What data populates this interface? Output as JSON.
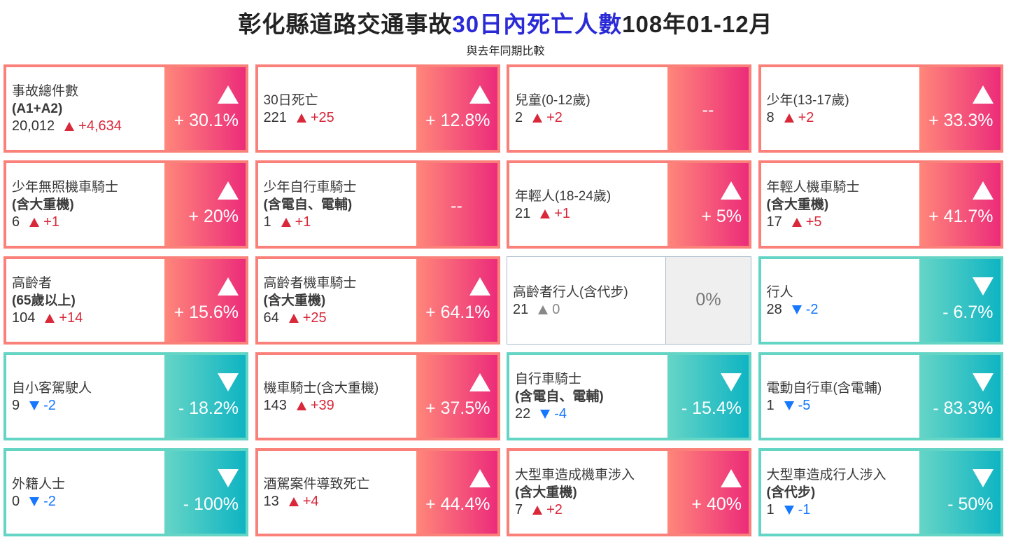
{
  "header": {
    "title_part1": "彰化縣道路交通事故",
    "title_highlight": "30日內死亡人數",
    "title_part2": "108年01-12月",
    "subtitle": "與去年同期比較"
  },
  "colors": {
    "up": "#d8283a",
    "down": "#1677ff",
    "up_gradient": [
      "#ff877a",
      "#ec2c7a"
    ],
    "down_gradient": [
      "#66d5c6",
      "#0fb4c3"
    ],
    "title_highlight": "#2a2ad6"
  },
  "cards": [
    {
      "line1": "事故總件數",
      "line2": "(A1+A2)",
      "value": "20,012",
      "delta": "+4,634",
      "trend": "up",
      "pct": "+ 30.1%"
    },
    {
      "line1": "30日死亡",
      "line2": "",
      "value": "221",
      "delta": "+25",
      "trend": "up",
      "pct": "+ 12.8%"
    },
    {
      "line1": "兒童(0-12歲)",
      "line2": "",
      "value": "2",
      "delta": "+2",
      "trend": "up",
      "pct": "--",
      "no_arrow": true
    },
    {
      "line1": "少年(13-17歲)",
      "line2": "",
      "value": "8",
      "delta": "+2",
      "trend": "up",
      "pct": "+ 33.3%"
    },
    {
      "line1": "少年無照機車騎士",
      "line2": "(含大重機)",
      "value": "6",
      "delta": "+1",
      "trend": "up",
      "pct": "+ 20%"
    },
    {
      "line1": "少年自行車騎士",
      "line2": "(含電自、電輔)",
      "value": "1",
      "delta": "+1",
      "trend": "up",
      "pct": "--",
      "no_arrow": true
    },
    {
      "line1": "年輕人(18-24歲)",
      "line2": "",
      "value": "21",
      "delta": "+1",
      "trend": "up",
      "pct": "+ 5%"
    },
    {
      "line1": "年輕人機車騎士",
      "line2": "(含大重機)",
      "value": "17",
      "delta": "+5",
      "trend": "up",
      "pct": "+ 41.7%"
    },
    {
      "line1": "高齡者",
      "line2": "(65歲以上)",
      "value": "104",
      "delta": "+14",
      "trend": "up",
      "pct": "+ 15.6%"
    },
    {
      "line1": "高齡者機車騎士",
      "line2": "(含大重機)",
      "value": "64",
      "delta": "+25",
      "trend": "up",
      "pct": "+ 64.1%"
    },
    {
      "line1": "高齡者行人(含代步)",
      "line2": "",
      "value": "21",
      "delta": "0",
      "trend": "flat",
      "pct": "0%"
    },
    {
      "line1": "行人",
      "line2": "",
      "value": "28",
      "delta": "-2",
      "trend": "down",
      "pct": "- 6.7%"
    },
    {
      "line1": "自小客駕駛人",
      "line2": "",
      "value": "9",
      "delta": "-2",
      "trend": "down",
      "pct": "- 18.2%"
    },
    {
      "line1": "機車騎士(含大重機)",
      "line2": "",
      "value": "143",
      "delta": "+39",
      "trend": "up",
      "pct": "+ 37.5%"
    },
    {
      "line1": "自行車騎士",
      "line2": "(含電自、電輔)",
      "value": "22",
      "delta": "-4",
      "trend": "down",
      "pct": "- 15.4%"
    },
    {
      "line1": "電動自行車(含電輔)",
      "line2": "",
      "value": "1",
      "delta": "-5",
      "trend": "down",
      "pct": "- 83.3%"
    },
    {
      "line1": "外籍人士",
      "line2": "",
      "value": "0",
      "delta": "-2",
      "trend": "down",
      "pct": "- 100%"
    },
    {
      "line1": "酒駕案件導致死亡",
      "line2": "",
      "value": "13",
      "delta": "+4",
      "trend": "up",
      "pct": "+ 44.4%"
    },
    {
      "line1": "大型車造成機車涉入",
      "line2": "(含大重機)",
      "value": "7",
      "delta": "+2",
      "trend": "up",
      "pct": "+ 40%"
    },
    {
      "line1": "大型車造成行人涉入",
      "line2": "(含代步)",
      "value": "1",
      "delta": "-1",
      "trend": "down",
      "pct": "- 50%"
    }
  ]
}
